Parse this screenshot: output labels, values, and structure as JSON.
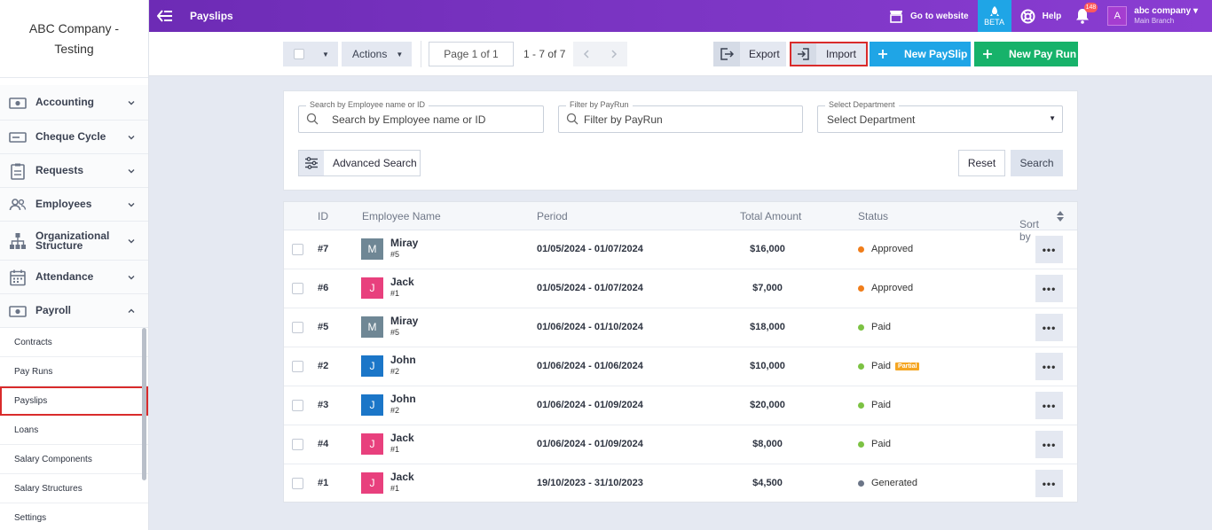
{
  "company": {
    "line1": "ABC Company -",
    "line2": "Testing"
  },
  "sidebar": {
    "items": [
      {
        "label": "Accounting",
        "icon": "money-icon"
      },
      {
        "label": "Cheque Cycle",
        "icon": "cheque-icon"
      },
      {
        "label": "Requests",
        "icon": "clipboard-icon"
      },
      {
        "label": "Employees",
        "icon": "people-icon"
      },
      {
        "label": "Organizational Structure",
        "icon": "org-chart-icon"
      },
      {
        "label": "Attendance",
        "icon": "calendar-icon"
      },
      {
        "label": "Payroll",
        "icon": "money-icon"
      }
    ],
    "sub": [
      "Contracts",
      "Pay Runs",
      "Payslips",
      "Loans",
      "Salary Components",
      "Salary Structures",
      "Settings"
    ]
  },
  "topbar": {
    "title": "Payslips",
    "website": "Go to website",
    "beta": "BETA",
    "help": "Help",
    "notif": "148",
    "avatar": "A",
    "account": "abc company",
    "branch": "Main Branch"
  },
  "toolbar": {
    "actions": "Actions",
    "page": "Page 1 of 1",
    "range": "1 - 7 of 7",
    "export": "Export",
    "import": "Import",
    "new_payslip": "New PaySlip",
    "new_payrun": "New Pay Run"
  },
  "filters": {
    "emp_legend": "Search by Employee name or ID",
    "emp_placeholder": "Search by Employee name or ID",
    "payrun_legend": "Filter by PayRun",
    "payrun_placeholder": "Filter by PayRun",
    "dept_legend": "Select Department",
    "dept_value": "Select Department",
    "advanced": "Advanced Search",
    "reset": "Reset",
    "search": "Search"
  },
  "table": {
    "headers": {
      "id": "ID",
      "name": "Employee Name",
      "period": "Period",
      "amount": "Total Amount",
      "status": "Status",
      "sort": "Sort by"
    },
    "rows": [
      {
        "id": "#7",
        "initial": "M",
        "avatar_color": "#6f8795",
        "name": "Miray",
        "sub": "#5",
        "period": "01/05/2024 - 01/07/2024",
        "amount": "$16,000",
        "status": "Approved",
        "status_color": "#f07d1a",
        "badge": ""
      },
      {
        "id": "#6",
        "initial": "J",
        "avatar_color": "#e8407d",
        "name": "Jack",
        "sub": "#1",
        "period": "01/05/2024 - 01/07/2024",
        "amount": "$7,000",
        "status": "Approved",
        "status_color": "#f07d1a",
        "badge": ""
      },
      {
        "id": "#5",
        "initial": "M",
        "avatar_color": "#6f8795",
        "name": "Miray",
        "sub": "#5",
        "period": "01/06/2024 - 01/10/2024",
        "amount": "$18,000",
        "status": "Paid",
        "status_color": "#7cc243",
        "badge": ""
      },
      {
        "id": "#2",
        "initial": "J",
        "avatar_color": "#1b76c8",
        "name": "John",
        "sub": "#2",
        "period": "01/06/2024 - 01/06/2024",
        "amount": "$10,000",
        "status": "Paid",
        "status_color": "#7cc243",
        "badge": "Partial"
      },
      {
        "id": "#3",
        "initial": "J",
        "avatar_color": "#1b76c8",
        "name": "John",
        "sub": "#2",
        "period": "01/06/2024 - 01/09/2024",
        "amount": "$20,000",
        "status": "Paid",
        "status_color": "#7cc243",
        "badge": ""
      },
      {
        "id": "#4",
        "initial": "J",
        "avatar_color": "#e8407d",
        "name": "Jack",
        "sub": "#1",
        "period": "01/06/2024 - 01/09/2024",
        "amount": "$8,000",
        "status": "Paid",
        "status_color": "#7cc243",
        "badge": ""
      },
      {
        "id": "#1",
        "initial": "J",
        "avatar_color": "#e8407d",
        "name": "Jack",
        "sub": "#1",
        "period": "19/10/2023 - 31/10/2023",
        "amount": "$4,500",
        "status": "Generated",
        "status_color": "#6b7587",
        "badge": ""
      }
    ]
  }
}
